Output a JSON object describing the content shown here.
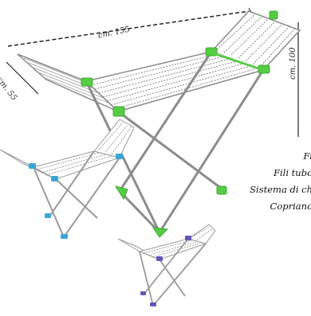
{
  "dimensions": {
    "length": "cm. 155",
    "width": "cm. 55",
    "height": "cm. 100"
  },
  "features": [
    "Fi",
    "Fili tubo",
    "Sistema di ch",
    "Copriano"
  ],
  "colors": {
    "accent_green": "#55cc44",
    "accent_blue": "#3aa6d8",
    "accent_purple": "#6a55b8",
    "frame": "#9a9a9a",
    "line": "#555555"
  }
}
